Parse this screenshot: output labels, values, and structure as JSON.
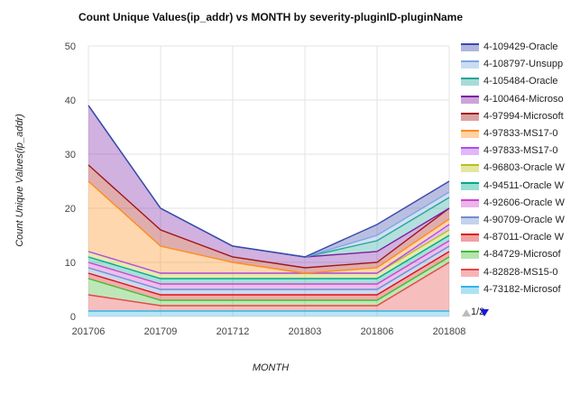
{
  "chart_data": {
    "type": "area",
    "title": "Count Unique Values(ip_addr) vs MONTH by severity-pluginID-pluginName",
    "xlabel": "MONTH",
    "ylabel": "Count Unique Values(ip_addr)",
    "categories": [
      "201706",
      "201709",
      "201712",
      "201803",
      "201806",
      "201808"
    ],
    "ylim": [
      0,
      50
    ],
    "yticks": [
      0,
      10,
      20,
      30,
      40,
      50
    ],
    "grid": true,
    "legend_position": "right",
    "series": [
      {
        "name": "4-109429-Oracle",
        "color": "#3949ab",
        "values": [
          0,
          0,
          0,
          0,
          2,
          2
        ]
      },
      {
        "name": "4-108797-Unsupp",
        "color": "#7ea7e0",
        "values": [
          0,
          0,
          0,
          0,
          1,
          1
        ]
      },
      {
        "name": "4-105484-Oracle",
        "color": "#26a69a",
        "values": [
          0,
          0,
          0,
          0,
          2,
          2
        ]
      },
      {
        "name": "4-100464-Microso",
        "color": "#7b1fa2",
        "values": [
          11,
          4,
          2,
          2,
          2,
          0
        ]
      },
      {
        "name": "4-97994-Microsoft",
        "color": "#a31515",
        "values": [
          3,
          3,
          1,
          1,
          1,
          2
        ]
      },
      {
        "name": "4-97833-MS17-0",
        "color": "#ff8c1a",
        "values": [
          13,
          5,
          2,
          0,
          1,
          1
        ]
      },
      {
        "name": "4-97833-MS17-0",
        "color": "#b24cf0",
        "values": [
          0,
          0,
          0,
          0,
          0,
          1
        ]
      },
      {
        "name": "4-96803-Oracle W",
        "color": "#bcc01a",
        "values": [
          1,
          1,
          1,
          1,
          1,
          1
        ]
      },
      {
        "name": "4-94511-Oracle W",
        "color": "#00a98f",
        "values": [
          1,
          1,
          1,
          1,
          1,
          1
        ]
      },
      {
        "name": "4-92606-Oracle W",
        "color": "#cc44cc",
        "values": [
          1,
          1,
          1,
          1,
          1,
          1
        ]
      },
      {
        "name": "4-90709-Oracle W",
        "color": "#6f8fcf",
        "values": [
          1,
          1,
          1,
          1,
          1,
          1
        ]
      },
      {
        "name": "4-87011-Oracle W",
        "color": "#dd1111",
        "values": [
          1,
          1,
          1,
          1,
          1,
          1
        ]
      },
      {
        "name": "4-84729-Microsof",
        "color": "#44bb33",
        "values": [
          3,
          1,
          1,
          1,
          1,
          1
        ]
      },
      {
        "name": "4-82828-MS15-0",
        "color": "#e84545",
        "values": [
          3,
          1,
          1,
          1,
          1,
          9
        ]
      },
      {
        "name": "4-73182-Microsof",
        "color": "#33b5e5",
        "values": [
          1,
          1,
          1,
          1,
          1,
          1
        ]
      }
    ]
  },
  "legend": {
    "page": "1/2"
  }
}
